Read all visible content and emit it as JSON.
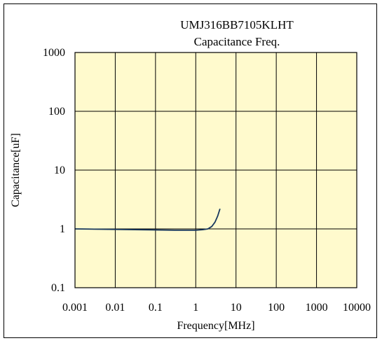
{
  "chart_data": {
    "type": "line",
    "title": "UMJ316BB7105KLHT",
    "subtitle": "Capacitance Freq.",
    "xlabel": "Frequency[MHz]",
    "ylabel": "Capacitance[uF]",
    "x_scale": "log",
    "y_scale": "log",
    "xlim": [
      0.001,
      10000
    ],
    "ylim": [
      0.1,
      1000
    ],
    "x_ticks": [
      "0.001",
      "0.01",
      "0.1",
      "1",
      "10",
      "100",
      "1000",
      "10000"
    ],
    "y_ticks": [
      "0.1",
      "1",
      "10",
      "100",
      "1000"
    ],
    "grid": true,
    "plot_background": "#fffacd",
    "grid_color": "#000000",
    "series": [
      {
        "color": "#17375e",
        "x": [
          0.001,
          0.003,
          0.01,
          0.03,
          0.1,
          0.3,
          1,
          1.5,
          2,
          2.5,
          3,
          3.5,
          4
        ],
        "y": [
          1.0,
          0.99,
          0.98,
          0.97,
          0.96,
          0.95,
          0.95,
          0.97,
          1.0,
          1.1,
          1.3,
          1.65,
          2.2
        ]
      }
    ]
  }
}
